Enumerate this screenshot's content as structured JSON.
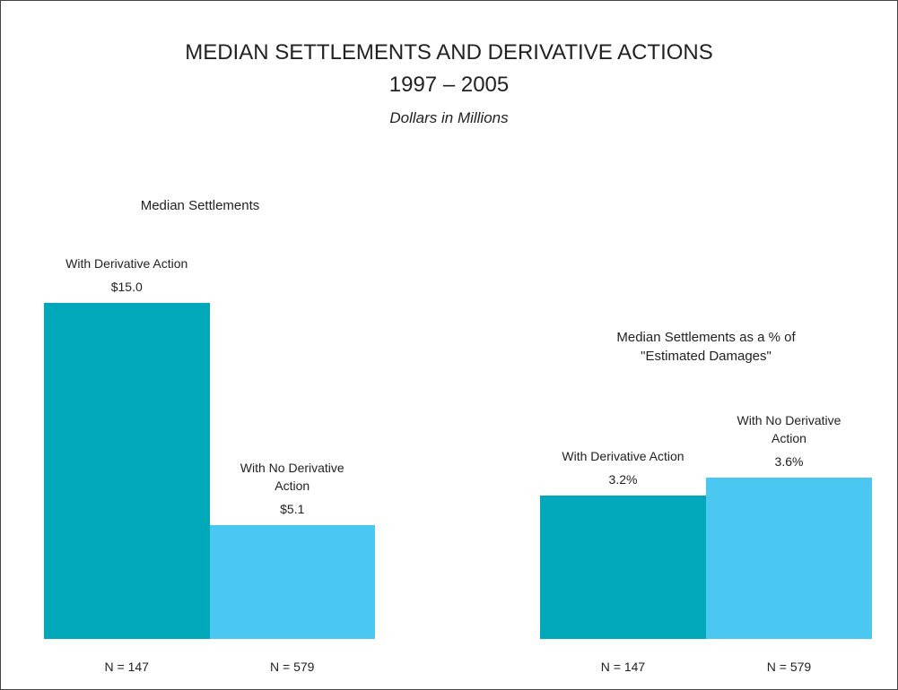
{
  "header": {
    "title": "MEDIAN SETTLEMENTS AND DERIVATIVE ACTIONS",
    "years": "1997 – 2005",
    "subtitle": "Dollars in Millions"
  },
  "chart_data": [
    {
      "type": "bar",
      "title": "Median Settlements",
      "categories": [
        "With Derivative Action",
        "With No Derivative Action"
      ],
      "values": [
        15.0,
        5.1
      ],
      "value_labels": [
        "$15.0",
        "$5.1"
      ],
      "notes": [
        "N = 147",
        "N = 579"
      ],
      "colors": [
        "#00a8b9",
        "#4ac8f2"
      ],
      "ylim": [
        0,
        18
      ]
    },
    {
      "type": "bar",
      "title": "Median Settlements as a % of \"Estimated Damages\"",
      "categories": [
        "With Derivative Action",
        "With No Derivative Action"
      ],
      "values": [
        3.2,
        3.6
      ],
      "value_labels": [
        "3.2%",
        "3.6%"
      ],
      "notes": [
        "N = 147",
        "N = 579"
      ],
      "colors": [
        "#00a8b9",
        "#4ac8f2"
      ],
      "ylim": [
        0,
        9
      ]
    }
  ]
}
